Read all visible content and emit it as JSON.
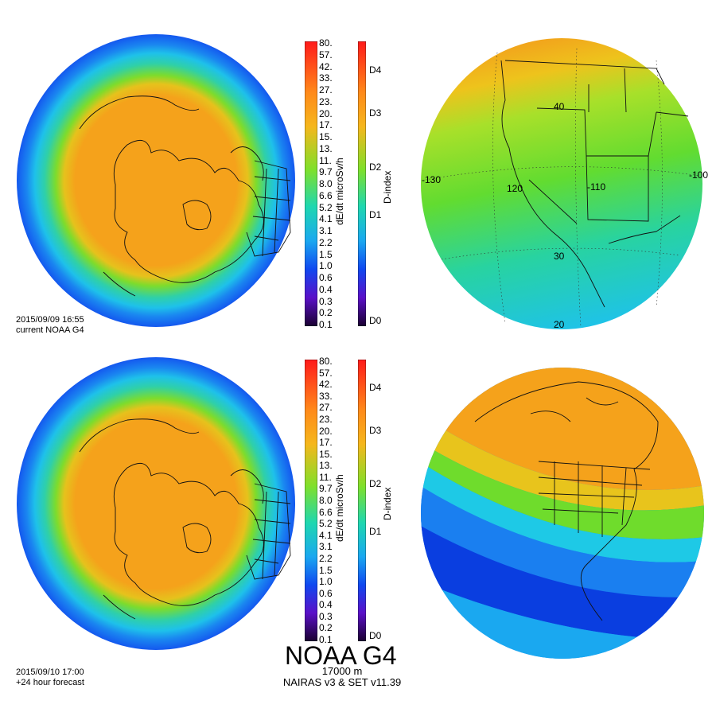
{
  "panels": {
    "top_left": {
      "date": "2015/09/09 16:55",
      "label": "current NOAA G4"
    },
    "bottom_left": {
      "date": "2015/09/10 17:00",
      "label": "+24 hour forecast"
    }
  },
  "dose_colorbar": {
    "title": "dE/dt microSv/h",
    "ticks": [
      "80.",
      "57.",
      "42.",
      "33.",
      "27.",
      "23.",
      "20.",
      "17.",
      "15.",
      "13.",
      "11.",
      "9.7",
      "8.0",
      "6.6",
      "5.2",
      "4.1",
      "3.1",
      "2.2",
      "1.5",
      "1.0",
      "0.6",
      "0.4",
      "0.3",
      "0.2",
      "0.1"
    ]
  },
  "dindex_colorbar": {
    "title": "D-index",
    "ticks": [
      "D4",
      "D3",
      "D2",
      "D1",
      "D0"
    ]
  },
  "map_labels": {
    "lon_130": "-130",
    "lon_120": "120",
    "lon_110": "-110",
    "lon_100": "-100",
    "lat_40": "40",
    "lat_30": "30",
    "lat_20": "20"
  },
  "footer": {
    "title": "NOAA G4",
    "altitude": "17000 m",
    "model": "NAIRAS v3 & SET v11.39"
  },
  "colors": {
    "orange": "#f5a21b",
    "yellow": "#f6c81c",
    "green": "#6fdc2c",
    "cyan": "#1ec9e6",
    "blue": "#1661f2",
    "deepblue": "#0a3ee0"
  }
}
